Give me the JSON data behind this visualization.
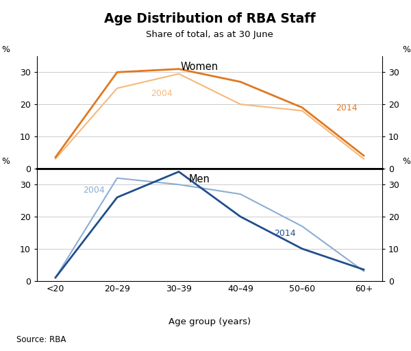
{
  "title": "Age Distribution of RBA Staff",
  "subtitle": "Share of total, as at 30 June",
  "source": "Source: RBA",
  "xlabel": "Age group (years)",
  "categories": [
    "<20",
    "20–29",
    "30–39",
    "40–49",
    "50–60",
    "60+"
  ],
  "women_2014": [
    3.5,
    30.0,
    31.0,
    27.0,
    19.0,
    4.0
  ],
  "women_2004": [
    3.0,
    25.0,
    29.5,
    20.0,
    18.0,
    3.0
  ],
  "men_2014": [
    1.0,
    26.0,
    34.0,
    20.0,
    10.0,
    3.5
  ],
  "men_2004": [
    1.0,
    32.0,
    30.0,
    27.0,
    17.0,
    3.0
  ],
  "color_2014_women": "#E07820",
  "color_2004_women": "#F5B87A",
  "color_2014_men": "#1F4E8C",
  "color_2004_men": "#8AADD4",
  "ylim": [
    0,
    35
  ],
  "yticks": [
    0,
    10,
    20,
    30
  ],
  "background_color": "#FFFFFF",
  "grid_color": "#CCCCCC",
  "linewidth_2014": 2.0,
  "linewidth_2004": 1.5
}
